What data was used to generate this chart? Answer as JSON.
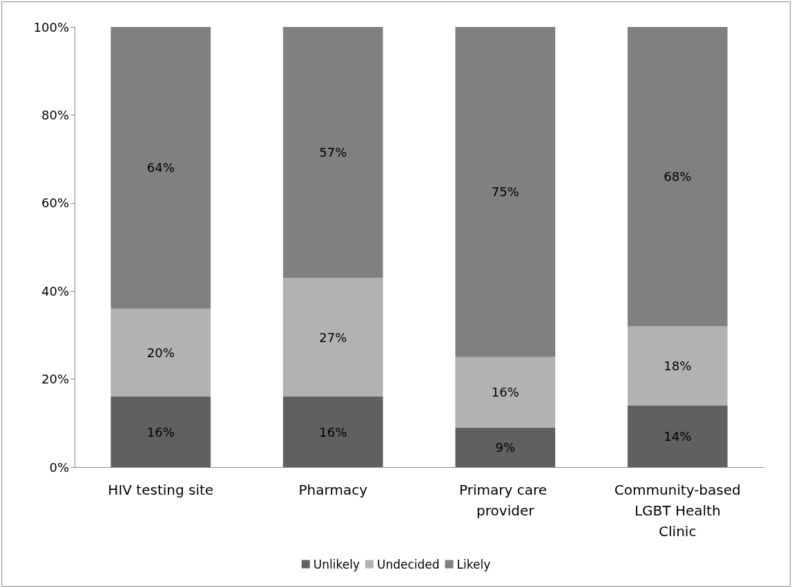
{
  "chart_data": {
    "type": "bar",
    "stacked": true,
    "categories": [
      "HIV testing site",
      "Pharmacy",
      "Primary care provider",
      "Community-based LGBT Health Clinic"
    ],
    "series": [
      {
        "name": "Unlikely",
        "color": "#606060",
        "values": [
          16,
          16,
          9,
          14
        ],
        "value_labels": [
          "16%",
          "16%",
          "9%",
          "14%"
        ]
      },
      {
        "name": "Undecided",
        "color": "#b2b2b2",
        "values": [
          20,
          27,
          16,
          18
        ],
        "value_labels": [
          "20%",
          "27%",
          "16%",
          "18%"
        ]
      },
      {
        "name": "Likely",
        "color": "#808080",
        "values": [
          64,
          57,
          75,
          68
        ],
        "value_labels": [
          "64%",
          "57%",
          "75%",
          "68%"
        ]
      }
    ],
    "ylim": [
      0,
      100
    ],
    "yticks": [
      {
        "value": 0,
        "label": "0%"
      },
      {
        "value": 20,
        "label": "20%"
      },
      {
        "value": 40,
        "label": "40%"
      },
      {
        "value": 60,
        "label": "60%"
      },
      {
        "value": 80,
        "label": "80%"
      },
      {
        "value": 100,
        "label": "100%"
      }
    ],
    "grid": false,
    "legend": "bottom"
  }
}
